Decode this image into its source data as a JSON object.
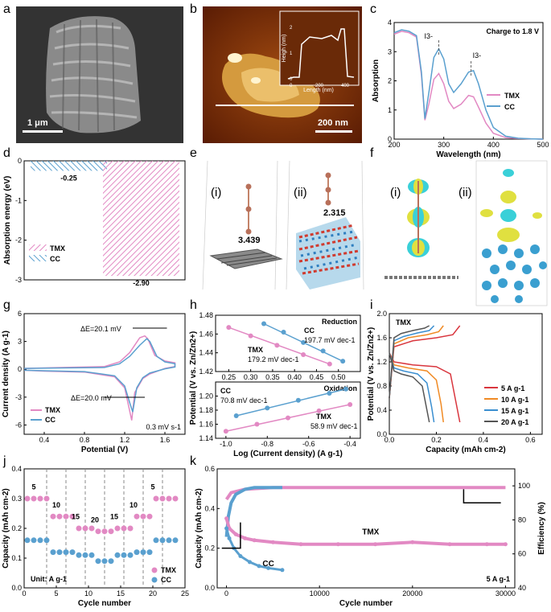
{
  "panel_letters": [
    "a",
    "b",
    "c",
    "d",
    "e",
    "f",
    "g",
    "h",
    "i",
    "j",
    "k"
  ],
  "a": {
    "scale_bar": "1 μm"
  },
  "b": {
    "scale_bar": "200 nm",
    "inset_ylabel": "Heigh (nm)",
    "inset_xlabel": "Length (nm)",
    "inset_yticks": [
      "0",
      "1",
      "2"
    ],
    "inset_xticks": [
      "0",
      "200",
      "400"
    ]
  },
  "e": {
    "sub_i": "(i)",
    "sub_ii": "(ii)",
    "dist_i": "3.439",
    "dist_ii": "2.315"
  },
  "f": {
    "sub_i": "(i)",
    "sub_ii": "(ii)"
  },
  "colors": {
    "tmx": "#e289c3",
    "cc": "#5aa0cf"
  },
  "chart_data": [
    {
      "panel": "c",
      "type": "line",
      "title": "Charge to 1.8 V",
      "xlabel": "Wavelength (nm)",
      "ylabel": "Absorption",
      "xlim": [
        200,
        500
      ],
      "ylim": [
        0,
        4
      ],
      "xticks": [
        "200",
        "300",
        "400",
        "500"
      ],
      "yticks": [
        "0",
        "1",
        "2",
        "3",
        "4"
      ],
      "annotations": [
        "I3-",
        "I3-"
      ],
      "series": [
        {
          "name": "TMX",
          "x": [
            200,
            215,
            230,
            245,
            255,
            262,
            270,
            280,
            290,
            300,
            310,
            320,
            335,
            350,
            360,
            370,
            385,
            400,
            425,
            450,
            475,
            500
          ],
          "y": [
            3.6,
            3.7,
            3.65,
            3.5,
            2.2,
            0.65,
            1.2,
            2.05,
            2.25,
            1.9,
            1.3,
            1.05,
            1.2,
            1.5,
            1.45,
            1.1,
            0.55,
            0.2,
            0.05,
            0.02,
            0.01,
            0.0
          ]
        },
        {
          "name": "CC",
          "x": [
            200,
            215,
            230,
            245,
            255,
            262,
            270,
            280,
            290,
            300,
            310,
            320,
            335,
            350,
            360,
            370,
            385,
            400,
            425,
            450,
            475,
            500
          ],
          "y": [
            3.65,
            3.75,
            3.7,
            3.55,
            2.3,
            0.7,
            1.6,
            2.8,
            3.1,
            2.75,
            1.9,
            1.6,
            1.9,
            2.3,
            2.35,
            1.9,
            1.0,
            0.4,
            0.1,
            0.03,
            0.01,
            0.0
          ]
        }
      ]
    },
    {
      "panel": "d",
      "type": "bar",
      "ylabel": "Absorption energy (eV)",
      "ylim": [
        -3,
        0
      ],
      "yticks": [
        "0",
        "-1",
        "-2",
        "-3"
      ],
      "categories": [
        "CC",
        "TMX"
      ],
      "values": [
        -0.25,
        -2.9
      ],
      "labels": [
        "-0.25",
        "-2.90"
      ],
      "legend": [
        "TMX",
        "CC"
      ]
    },
    {
      "panel": "g",
      "type": "line",
      "xlabel": "Potential (V)",
      "ylabel": "Current density (A g-1)",
      "xlim": [
        0.2,
        1.8
      ],
      "ylim": [
        -7,
        6
      ],
      "xticks": [
        "0.4",
        "0.8",
        "1.2",
        "1.6"
      ],
      "yticks": [
        "6",
        "3",
        "0",
        "-3",
        "-6"
      ],
      "annotations": [
        "ΔE=20.1 mV",
        "ΔE=20.0 mV",
        "0.3 mV s-1"
      ],
      "series": [
        {
          "name": "TMX",
          "x": [
            0.2,
            0.6,
            1.0,
            1.15,
            1.25,
            1.35,
            1.4,
            1.43,
            1.5,
            1.6,
            1.7,
            1.7,
            1.6,
            1.45,
            1.38,
            1.3,
            1.27,
            1.24,
            1.2,
            1.1,
            0.8,
            0.4,
            0.2
          ],
          "y": [
            0.1,
            0.2,
            0.3,
            0.8,
            1.8,
            3.4,
            3.6,
            3.3,
            1.5,
            0.9,
            0.7,
            0.3,
            0.1,
            -0.5,
            -1.0,
            -2.5,
            -5.5,
            -4.0,
            -2.0,
            -0.8,
            -0.3,
            -0.2,
            -0.1
          ]
        },
        {
          "name": "CC",
          "x": [
            0.2,
            0.6,
            1.0,
            1.15,
            1.25,
            1.35,
            1.42,
            1.45,
            1.52,
            1.6,
            1.7,
            1.7,
            1.6,
            1.45,
            1.38,
            1.32,
            1.28,
            1.25,
            1.2,
            1.1,
            0.8,
            0.4,
            0.2
          ],
          "y": [
            0.1,
            0.15,
            0.2,
            0.6,
            1.4,
            2.6,
            3.3,
            3.0,
            1.4,
            0.8,
            0.6,
            0.25,
            0.05,
            -0.4,
            -0.9,
            -2.0,
            -4.6,
            -3.6,
            -1.8,
            -0.7,
            -0.25,
            -0.15,
            -0.1
          ]
        }
      ]
    },
    {
      "panel": "h-reduction",
      "type": "scatter",
      "title": "Reduction",
      "xlim": [
        0.22,
        0.55
      ],
      "ylim": [
        1.42,
        1.48
      ],
      "xticks": [
        "0.25",
        "0.30",
        "0.35",
        "0.40",
        "0.45",
        "0.50"
      ],
      "yticks": [
        "1.48",
        "1.46",
        "1.44",
        "1.42"
      ],
      "annotations": [
        "197.7 mV dec-1",
        "179.2 mV dec-1"
      ],
      "series": [
        {
          "name": "CC",
          "x": [
            0.33,
            0.375,
            0.42,
            0.465,
            0.51
          ],
          "y": [
            1.471,
            1.462,
            1.451,
            1.442,
            1.431
          ]
        },
        {
          "name": "TMX",
          "x": [
            0.25,
            0.3,
            0.36,
            0.42,
            0.48
          ],
          "y": [
            1.467,
            1.458,
            1.448,
            1.438,
            1.428
          ]
        }
      ]
    },
    {
      "panel": "h-oxidation",
      "type": "scatter",
      "title": "Oxidation",
      "xlabel": "Log (Current density) (A g-1)",
      "ylabel": "Potential (V vs. Zn/Zn2+)",
      "xlim": [
        -1.05,
        -0.35
      ],
      "ylim": [
        1.14,
        1.22
      ],
      "xticks": [
        "-1.0",
        "-0.8",
        "-0.6",
        "-0.4"
      ],
      "yticks": [
        "1.20",
        "1.18",
        "1.16",
        "1.14"
      ],
      "annotations": [
        "70.8 mV dec-1",
        "58.9 mV dec-1"
      ],
      "series": [
        {
          "name": "CC",
          "x": [
            -0.95,
            -0.8,
            -0.65,
            -0.5,
            -0.42
          ],
          "y": [
            1.172,
            1.183,
            1.194,
            1.204,
            1.21
          ]
        },
        {
          "name": "TMX",
          "x": [
            -1.0,
            -0.85,
            -0.7,
            -0.55,
            -0.4
          ],
          "y": [
            1.15,
            1.16,
            1.169,
            1.179,
            1.188
          ]
        }
      ]
    },
    {
      "panel": "i",
      "type": "line",
      "title": "TMX",
      "xlabel": "Capacity (mAh cm-2)",
      "ylabel": "Potential (V vs. Zn/Zn2+)",
      "xlim": [
        0,
        0.65
      ],
      "ylim": [
        0,
        2
      ],
      "xticks": [
        "0.0",
        "0.2",
        "0.4",
        "0.6"
      ],
      "yticks": [
        "2.0",
        "1.6",
        "1.2",
        "0.8",
        "0.4",
        "0.0"
      ],
      "series": [
        {
          "name": "5 A g-1",
          "color": "#d9363e",
          "discharge_x": [
            0,
            0.02,
            0.1,
            0.2,
            0.26,
            0.28,
            0.3
          ],
          "discharge_y": [
            1.35,
            1.2,
            1.15,
            1.12,
            1.0,
            0.6,
            0.2
          ],
          "charge_x": [
            0,
            0.02,
            0.1,
            0.2,
            0.27,
            0.3
          ],
          "charge_y": [
            0.6,
            1.45,
            1.55,
            1.6,
            1.65,
            1.8
          ]
        },
        {
          "name": "10 A g-1",
          "color": "#f08a24",
          "discharge_x": [
            0,
            0.02,
            0.08,
            0.16,
            0.2,
            0.22,
            0.23
          ],
          "discharge_y": [
            1.35,
            1.15,
            1.1,
            1.05,
            0.9,
            0.5,
            0.2
          ],
          "charge_x": [
            0,
            0.02,
            0.08,
            0.16,
            0.21,
            0.23
          ],
          "charge_y": [
            0.6,
            1.5,
            1.6,
            1.65,
            1.7,
            1.8
          ]
        },
        {
          "name": "15 A g-1",
          "color": "#3a8ed0",
          "discharge_x": [
            0,
            0.02,
            0.06,
            0.12,
            0.16,
            0.18,
            0.19
          ],
          "discharge_y": [
            1.35,
            1.1,
            1.05,
            1.0,
            0.85,
            0.45,
            0.2
          ],
          "charge_x": [
            0,
            0.02,
            0.06,
            0.12,
            0.17,
            0.19
          ],
          "charge_y": [
            0.6,
            1.55,
            1.62,
            1.68,
            1.72,
            1.8
          ]
        },
        {
          "name": "20 A g-1",
          "color": "#555555",
          "discharge_x": [
            0,
            0.02,
            0.05,
            0.1,
            0.14,
            0.16,
            0.17
          ],
          "discharge_y": [
            1.35,
            1.05,
            1.0,
            0.95,
            0.8,
            0.4,
            0.2
          ],
          "charge_x": [
            0,
            0.02,
            0.05,
            0.1,
            0.15,
            0.17
          ],
          "charge_y": [
            0.6,
            1.6,
            1.67,
            1.72,
            1.76,
            1.8
          ]
        }
      ]
    },
    {
      "panel": "j",
      "type": "scatter",
      "xlabel": "Cycle number",
      "ylabel": "Capacity (mAh cm-2)",
      "xlim": [
        0,
        25
      ],
      "ylim": [
        0,
        0.4
      ],
      "xticks": [
        "0",
        "5",
        "10",
        "15",
        "20",
        "25"
      ],
      "yticks": [
        "0.0",
        "0.1",
        "0.2",
        "0.3",
        "0.4"
      ],
      "rate_labels": [
        "5",
        "10",
        "15",
        "20",
        "15",
        "10",
        "5"
      ],
      "unit_label": "Unit: A g-1",
      "series": [
        {
          "name": "TMX",
          "values": [
            0.3,
            0.3,
            0.3,
            0.3,
            0.24,
            0.24,
            0.24,
            0.24,
            0.2,
            0.2,
            0.2,
            0.19,
            0.19,
            0.19,
            0.2,
            0.2,
            0.2,
            0.24,
            0.24,
            0.24,
            0.3,
            0.3,
            0.3,
            0.3
          ]
        },
        {
          "name": "CC",
          "values": [
            0.16,
            0.16,
            0.16,
            0.16,
            0.12,
            0.12,
            0.12,
            0.12,
            0.11,
            0.11,
            0.11,
            0.09,
            0.09,
            0.09,
            0.11,
            0.11,
            0.11,
            0.12,
            0.12,
            0.12,
            0.16,
            0.16,
            0.16,
            0.16
          ]
        }
      ]
    },
    {
      "panel": "k",
      "type": "scatter",
      "xlabel": "Cycle number",
      "ylabel": "Capacity (mAh cm-2)",
      "ylabel2": "Efficiency (%)",
      "xlim": [
        -1000,
        31000
      ],
      "ylim": [
        0,
        0.6
      ],
      "ylim2": [
        40,
        110
      ],
      "xticks": [
        "0",
        "10000",
        "20000",
        "30000"
      ],
      "yticks": [
        "0.0",
        "0.2",
        "0.4",
        "0.6"
      ],
      "yticks2": [
        "40",
        "60",
        "80",
        "100"
      ],
      "annotations": [
        "TMX",
        "CC",
        "5 A g-1"
      ],
      "series": [
        {
          "name": "TMX capacity",
          "x": [
            0,
            300,
            1000,
            2000,
            3000,
            5000,
            8000,
            12000,
            16000,
            20000,
            24000,
            28000,
            30000
          ],
          "y": [
            0.35,
            0.3,
            0.27,
            0.25,
            0.24,
            0.23,
            0.22,
            0.22,
            0.22,
            0.23,
            0.22,
            0.22,
            0.22
          ]
        },
        {
          "name": "CC capacity",
          "x": [
            0,
            300,
            800,
            1500,
            2500,
            3500,
            4500,
            6000
          ],
          "y": [
            0.3,
            0.25,
            0.2,
            0.16,
            0.13,
            0.11,
            0.1,
            0.09
          ]
        },
        {
          "name": "TMX efficiency",
          "x": [
            0,
            500,
            2000,
            5000,
            10000,
            15000,
            20000,
            25000,
            30000
          ],
          "y": [
            92,
            96,
            98,
            99,
            99,
            99,
            99,
            99,
            99
          ]
        },
        {
          "name": "CC efficiency",
          "x": [
            0,
            200,
            500,
            1000,
            2000,
            3000,
            4000,
            5000,
            6000
          ],
          "y": [
            70,
            82,
            90,
            95,
            98,
            99,
            99,
            99,
            99
          ]
        }
      ]
    }
  ]
}
